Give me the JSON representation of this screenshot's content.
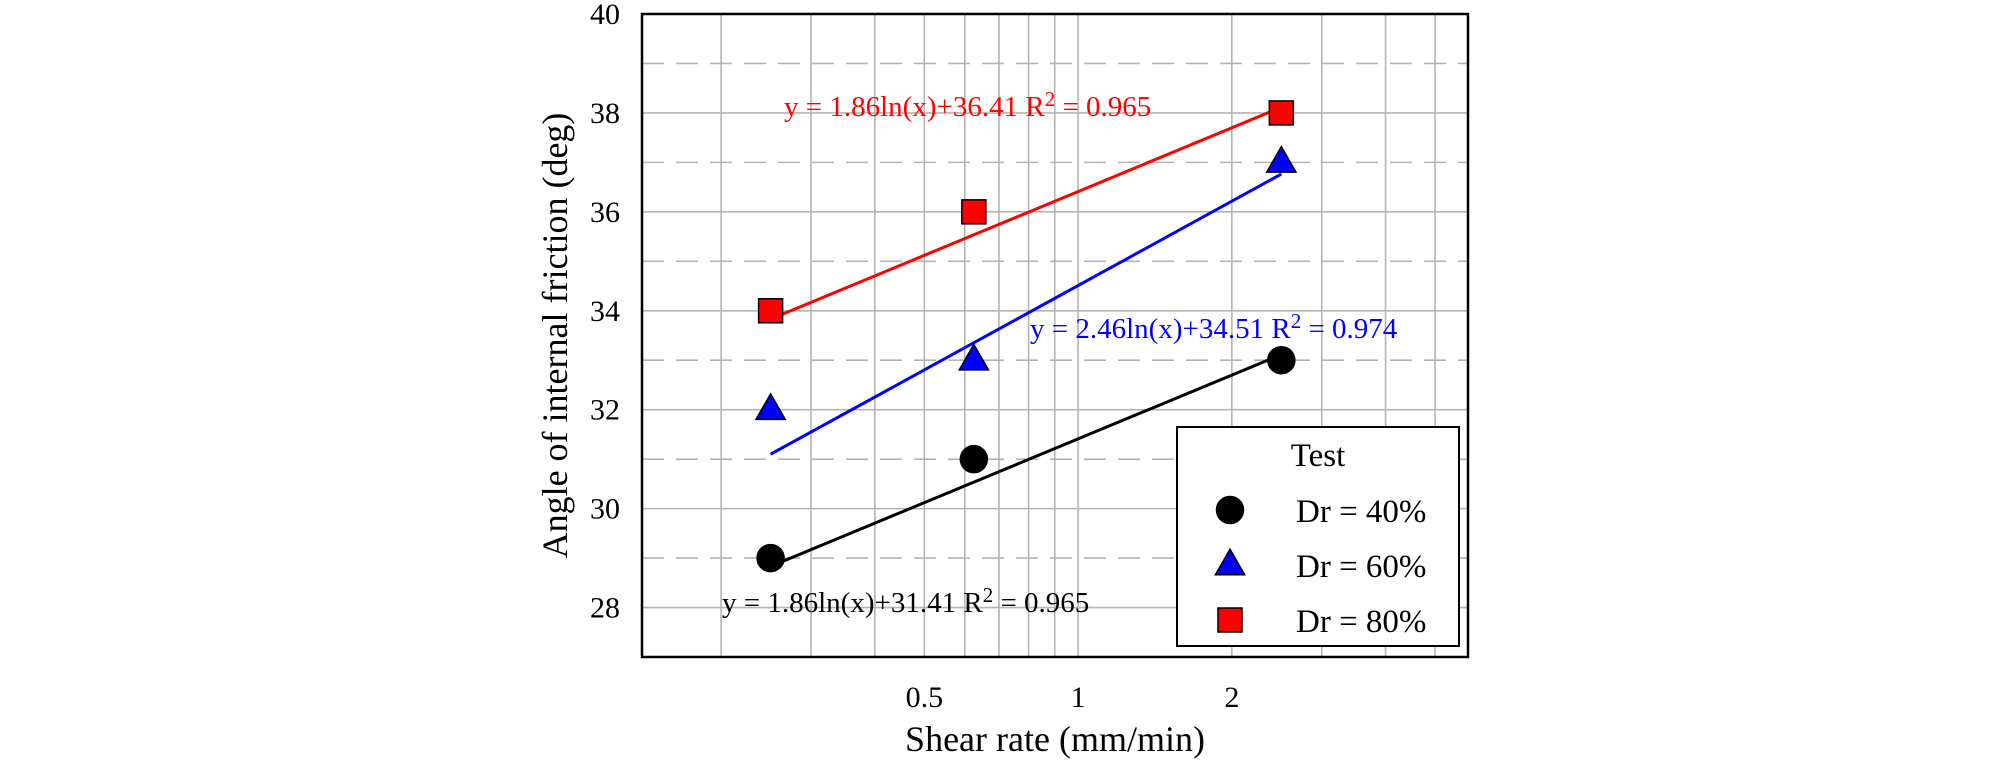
{
  "chart_data": {
    "type": "scatter",
    "xlabel": "Shear rate (mm/min)",
    "ylabel": "Angle of internal friction (deg)",
    "x_scale": "log",
    "xlim": [
      0.14,
      5.8
    ],
    "ylim": [
      27,
      40
    ],
    "x_ticks": [
      {
        "value": 0.5,
        "label": "0.5"
      },
      {
        "value": 1,
        "label": "1"
      },
      {
        "value": 2,
        "label": "2"
      }
    ],
    "y_ticks": [
      {
        "value": 28,
        "label": "28"
      },
      {
        "value": 30,
        "label": "30"
      },
      {
        "value": 32,
        "label": "32"
      },
      {
        "value": 34,
        "label": "34"
      },
      {
        "value": 36,
        "label": "36"
      },
      {
        "value": 38,
        "label": "38"
      },
      {
        "value": 40,
        "label": "40"
      }
    ],
    "grid": true,
    "legend": {
      "title": "Test",
      "position": "bottom-right"
    },
    "series": [
      {
        "name": "Dr = 40%",
        "marker": "circle",
        "color": "#000000",
        "x": [
          0.25,
          0.625,
          2.5
        ],
        "y": [
          29,
          31,
          33
        ],
        "fit": {
          "slope": 1.86,
          "intercept": 31.41,
          "x_range": [
            0.25,
            2.5
          ]
        },
        "equation": "y = 1.86ln(x)+31.41",
        "r2_label": "R",
        "r2_sup": "2",
        "r2_value": " = 0.965"
      },
      {
        "name": "Dr = 60%",
        "marker": "triangle",
        "color": "#0000ff",
        "x": [
          0.25,
          0.625,
          2.5
        ],
        "y": [
          32,
          33,
          37
        ],
        "fit": {
          "slope": 2.46,
          "intercept": 34.51,
          "x_range": [
            0.25,
            2.5
          ]
        },
        "equation": "y = 2.46ln(x)+34.51",
        "r2_label": "R",
        "r2_sup": "2",
        "r2_value": " = 0.974"
      },
      {
        "name": "Dr = 80%",
        "marker": "square",
        "color": "#ff0000",
        "x": [
          0.25,
          0.625,
          2.5
        ],
        "y": [
          34,
          36,
          38
        ],
        "fit": {
          "slope": 1.86,
          "intercept": 36.41,
          "x_range": [
            0.25,
            2.5
          ]
        },
        "equation": "y = 1.86ln(x)+36.41",
        "r2_label": "R",
        "r2_sup": "2",
        "r2_value": " = 0.965"
      }
    ]
  }
}
